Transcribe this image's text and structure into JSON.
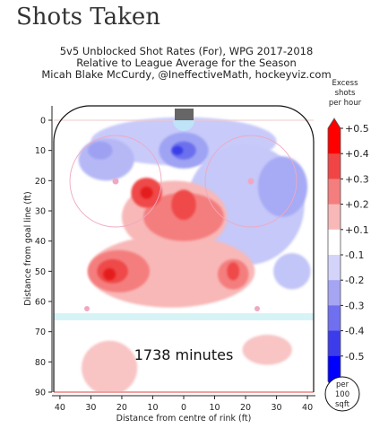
{
  "page": {
    "title": "Shots Taken"
  },
  "chart_data": {
    "type": "heatmap",
    "title_lines": [
      "5v5 Unblocked Shot Rates (For), WPG 2017-2018",
      "Relative to League Average for the Season",
      "Micah Blake McCurdy, @IneffectiveMath, hockeyviz.com"
    ],
    "xlabel": "Distance from centre of rink (ft)",
    "ylabel": "Distance from goal line (ft)",
    "x_ticks": [
      40,
      30,
      20,
      10,
      0,
      10,
      20,
      30,
      40
    ],
    "y_ticks": [
      0,
      10,
      20,
      30,
      40,
      50,
      60,
      70,
      80,
      90
    ],
    "xlim": [
      -42,
      42
    ],
    "ylim": [
      0,
      90
    ],
    "annotation": "1738 minutes",
    "colorbar": {
      "title_lines": [
        "Excess",
        "shots",
        "per hour"
      ],
      "ticks": [
        "+0.5",
        "+0.4",
        "+0.3",
        "+0.2",
        "+0.1",
        "-0.1",
        "-0.2",
        "-0.3",
        "-0.4",
        "-0.5"
      ],
      "levels": [
        0.45,
        0.35,
        0.25,
        0.15,
        0.05,
        -0.05,
        -0.15,
        -0.25,
        -0.35,
        -0.45
      ],
      "colors": [
        "#ff0000",
        "#f14545",
        "#f47e7e",
        "#f8b8b8",
        "#ffffff",
        "#d4d4fb",
        "#a5a5f4",
        "#6f6fef",
        "#3c3ceb",
        "#0000ff"
      ]
    },
    "unit_badge_lines": [
      "per",
      "100",
      "sqft"
    ],
    "contours": [
      {
        "name": "blue-crease-upper",
        "color": "#c8cafa",
        "cx": 0,
        "cy": 7,
        "rx": 30,
        "ry": 8
      },
      {
        "name": "blue-left-slot",
        "color": "#b6b8f6",
        "cx": -25,
        "cy": 13,
        "rx": 9,
        "ry": 7
      },
      {
        "name": "blue-left-point",
        "color": "#9ea1f2",
        "cx": -27,
        "cy": 10,
        "rx": 4,
        "ry": 3
      },
      {
        "name": "blue-crease-med",
        "color": "#9fa3f3",
        "cx": 0,
        "cy": 10,
        "rx": 8,
        "ry": 6
      },
      {
        "name": "blue-crease-core",
        "color": "#6c70ee",
        "cx": 0,
        "cy": 10,
        "rx": 4,
        "ry": 3
      },
      {
        "name": "blue-crease-peak",
        "color": "#3a3ee8",
        "cx": -2,
        "cy": 10,
        "rx": 1.8,
        "ry": 1.5
      },
      {
        "name": "blue-right-wing",
        "color": "#c5c8f8",
        "cx": 20,
        "cy": 28,
        "rx": 19,
        "ry": 20
      },
      {
        "name": "blue-right-faceoff",
        "color": "#a7aaf4",
        "cx": 32,
        "cy": 22,
        "rx": 8,
        "ry": 10
      },
      {
        "name": "blue-right-lower",
        "color": "#c2c5f7",
        "cx": 35,
        "cy": 50,
        "rx": 6,
        "ry": 6
      },
      {
        "name": "red-slot-large",
        "color": "#f8b8b8",
        "cx": -3,
        "cy": 32,
        "rx": 17,
        "ry": 12
      },
      {
        "name": "red-low-large",
        "color": "#f8b8b8",
        "cx": -4,
        "cy": 50,
        "rx": 27,
        "ry": 12
      },
      {
        "name": "red-neutral-left",
        "color": "#f8c4c4",
        "cx": -24,
        "cy": 82,
        "rx": 9,
        "ry": 9
      },
      {
        "name": "red-neutral-right",
        "color": "#f8c4c4",
        "cx": 27,
        "cy": 76,
        "rx": 8,
        "ry": 5
      },
      {
        "name": "red-slot-mid",
        "color": "#f47e7e",
        "cx": 0,
        "cy": 32,
        "rx": 13,
        "ry": 8
      },
      {
        "name": "red-low-left-mid",
        "color": "#f47e7e",
        "cx": -21,
        "cy": 50,
        "rx": 10,
        "ry": 7
      },
      {
        "name": "red-low-right-mid",
        "color": "#f47e7e",
        "cx": 16,
        "cy": 51,
        "rx": 5,
        "ry": 5
      },
      {
        "name": "red-slot-left-hot",
        "color": "#ef4a4a",
        "cx": -12,
        "cy": 24,
        "rx": 5,
        "ry": 5
      },
      {
        "name": "red-slot-right-hot",
        "color": "#ef4a4a",
        "cx": 0,
        "cy": 28,
        "rx": 4,
        "ry": 5
      },
      {
        "name": "red-low-left-hot",
        "color": "#ef4a4a",
        "cx": -23,
        "cy": 50,
        "rx": 5,
        "ry": 4
      },
      {
        "name": "red-low-right-hot",
        "color": "#ef4a4a",
        "cx": 16,
        "cy": 50,
        "rx": 2,
        "ry": 3
      },
      {
        "name": "red-slot-peak",
        "color": "#e51d1d",
        "cx": -12,
        "cy": 24,
        "rx": 2,
        "ry": 2
      },
      {
        "name": "red-low-peak",
        "color": "#e51d1d",
        "cx": -24,
        "cy": 51,
        "rx": 2,
        "ry": 2
      }
    ]
  }
}
